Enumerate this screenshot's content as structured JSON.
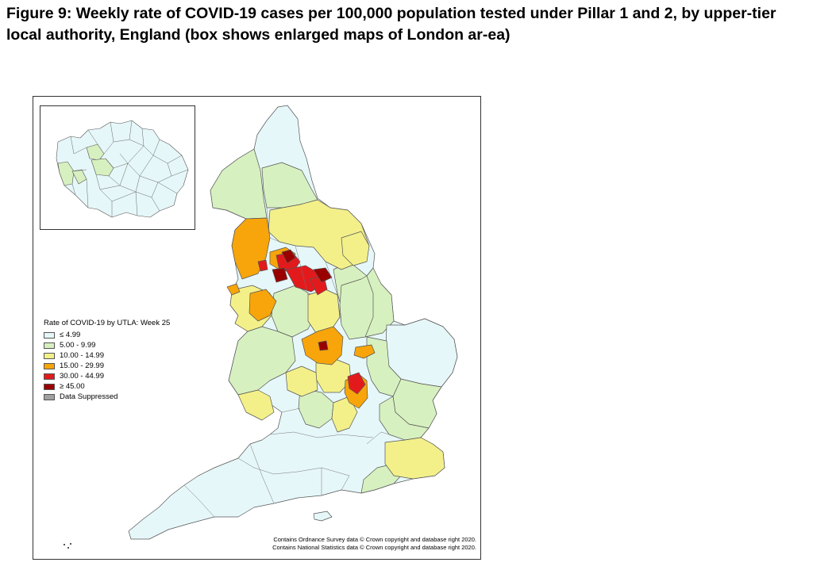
{
  "figure": {
    "title": "Figure 9: Weekly rate of COVID-19 cases per 100,000 population tested under Pillar 1 and 2, by upper-tier local authority, England (box shows enlarged maps of London ar-ea)"
  },
  "legend": {
    "title": "Rate of COVID-19 by UTLA: Week 25",
    "items": [
      {
        "label": "≤ 4.99",
        "color": "#e6f7f9"
      },
      {
        "label": "5.00 - 9.99",
        "color": "#d7f0c0"
      },
      {
        "label": "10.00 - 14.99",
        "color": "#f3f08a"
      },
      {
        "label": "15.00 - 29.99",
        "color": "#f7a50a"
      },
      {
        "label": "30.00 - 44.99",
        "color": "#e31a1c"
      },
      {
        "label": "≥ 45.00",
        "color": "#990000"
      },
      {
        "label": "Data Suppressed",
        "color": "#a0a0a0"
      }
    ]
  },
  "credits": {
    "line1": "Contains Ordnance Survey data © Crown copyright and database right 2020.",
    "line2": "Contains National Statistics data © Crown copyright and database right 2020."
  },
  "colors": {
    "border": "#555555",
    "frame": "#333333"
  }
}
